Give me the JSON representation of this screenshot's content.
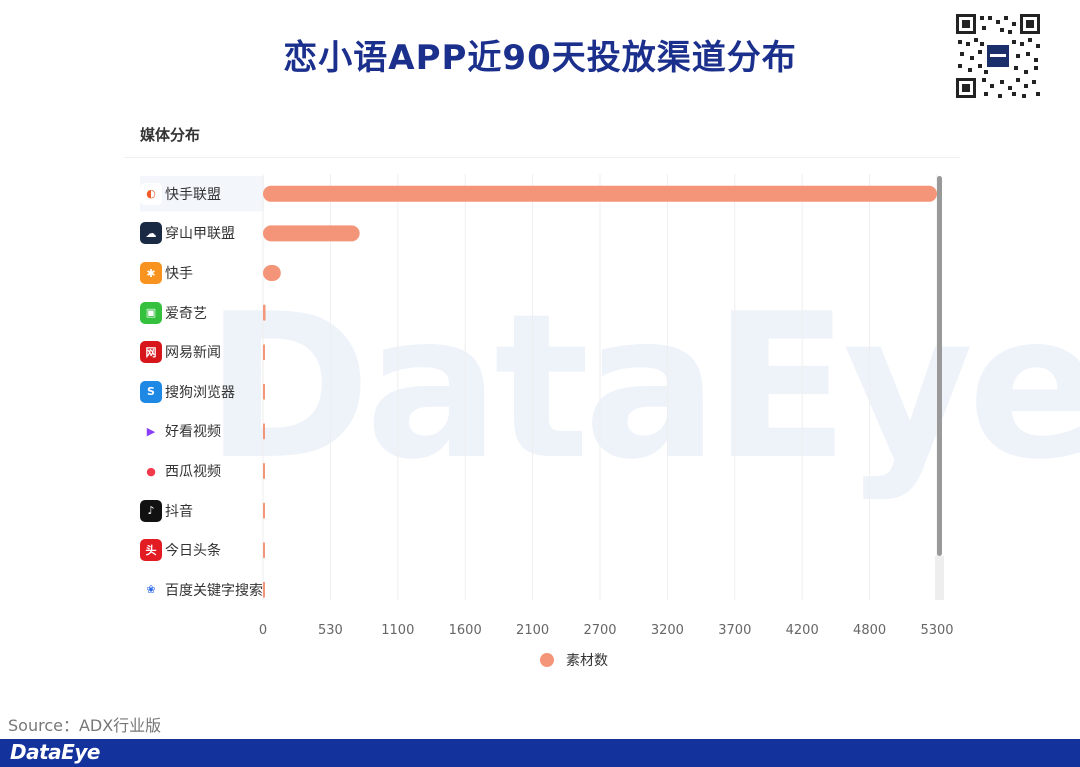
{
  "title": "恋小语APP近90天投放渠道分布",
  "section_title": "媒体分布",
  "watermark": "DataEye",
  "source": "Source：ADX行业版",
  "footer_logo": "DataEye",
  "colors": {
    "bar": "#f4957a",
    "title": "#1b2f8c",
    "footer": "#14329b"
  },
  "chart_data": {
    "type": "bar",
    "orientation": "horizontal",
    "categories": [
      "快手联盟",
      "穿山甲联盟",
      "快手",
      "爱奇艺",
      "网易新闻",
      "搜狗浏览器",
      "好看视频",
      "西瓜视频",
      "抖音",
      "今日头条",
      "百度关键字搜索"
    ],
    "series": [
      {
        "name": "素材数",
        "values": [
          5300,
          760,
          140,
          20,
          6,
          4,
          4,
          4,
          3,
          3,
          2
        ]
      }
    ],
    "xticks": [
      "0",
      "530",
      "1100",
      "1600",
      "2100",
      "2700",
      "3200",
      "3700",
      "4200",
      "4800",
      "5300"
    ],
    "xlim": [
      0,
      5300
    ],
    "grid": true,
    "legend": "bottom-center"
  },
  "icons": [
    {
      "name": "kuaishou-union-icon",
      "bg": "#ffffff",
      "fg": "#f05a28",
      "glyph": "◐"
    },
    {
      "name": "pangle-icon",
      "bg": "#1a2a44",
      "fg": "#ffffff",
      "glyph": "☁"
    },
    {
      "name": "kuaishou-icon",
      "bg": "#f7931e",
      "fg": "#ffffff",
      "glyph": "✱"
    },
    {
      "name": "iqiyi-icon",
      "bg": "#35c13e",
      "fg": "#ffffff",
      "glyph": "▣"
    },
    {
      "name": "netease-news-icon",
      "bg": "#d7161b",
      "fg": "#ffffff",
      "glyph": "网"
    },
    {
      "name": "sogou-browser-icon",
      "bg": "#1e88e5",
      "fg": "#ffffff",
      "glyph": "S"
    },
    {
      "name": "haokan-icon",
      "bg": "#ffffff",
      "fg": "#8a3ffc",
      "glyph": "▶"
    },
    {
      "name": "xigua-icon",
      "bg": "#ffffff",
      "fg": "#f23a4c",
      "glyph": "●"
    },
    {
      "name": "douyin-icon",
      "bg": "#111111",
      "fg": "#ffffff",
      "glyph": "♪"
    },
    {
      "name": "toutiao-icon",
      "bg": "#e31b23",
      "fg": "#ffffff",
      "glyph": "头"
    },
    {
      "name": "baidu-icon",
      "bg": "#ffffff",
      "fg": "#2f6ce5",
      "glyph": "❀"
    }
  ]
}
